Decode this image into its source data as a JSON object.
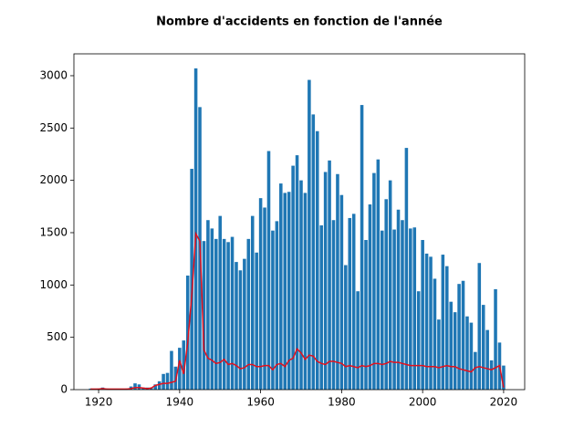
{
  "chart_data": {
    "type": "bar_line",
    "title": "Nombre d'accidents en fonction de l'année",
    "x": [
      1918,
      1919,
      1920,
      1921,
      1922,
      1923,
      1924,
      1925,
      1926,
      1927,
      1928,
      1929,
      1930,
      1931,
      1932,
      1933,
      1934,
      1935,
      1936,
      1937,
      1938,
      1939,
      1940,
      1941,
      1942,
      1943,
      1944,
      1945,
      1946,
      1947,
      1948,
      1949,
      1950,
      1951,
      1952,
      1953,
      1954,
      1955,
      1956,
      1957,
      1958,
      1959,
      1960,
      1961,
      1962,
      1963,
      1964,
      1965,
      1966,
      1967,
      1968,
      1969,
      1970,
      1971,
      1972,
      1973,
      1974,
      1975,
      1976,
      1977,
      1978,
      1979,
      1980,
      1981,
      1982,
      1983,
      1984,
      1985,
      1986,
      1987,
      1988,
      1989,
      1990,
      1991,
      1992,
      1993,
      1994,
      1995,
      1996,
      1997,
      1998,
      1999,
      2000,
      2001,
      2002,
      2003,
      2004,
      2005,
      2006,
      2007,
      2008,
      2009,
      2010,
      2011,
      2012,
      2013,
      2014,
      2015,
      2016,
      2017,
      2018,
      2019,
      2020
    ],
    "series": [
      {
        "color": "#1f77b4",
        "values": [
          10,
          5,
          10,
          20,
          10,
          5,
          5,
          5,
          5,
          10,
          30,
          60,
          50,
          20,
          20,
          20,
          50,
          80,
          150,
          160,
          370,
          220,
          400,
          470,
          1090,
          2110,
          3070,
          2700,
          1420,
          1620,
          1540,
          1440,
          1660,
          1440,
          1410,
          1460,
          1220,
          1140,
          1250,
          1440,
          1660,
          1310,
          1830,
          1740,
          2280,
          1520,
          1610,
          1970,
          1880,
          1890,
          2140,
          2240,
          2000,
          1880,
          2960,
          2630,
          2470,
          1570,
          2080,
          2190,
          1620,
          2060,
          1860,
          1190,
          1640,
          1680,
          940,
          2720,
          1430,
          1770,
          2070,
          2200,
          1520,
          1820,
          2000,
          1530,
          1720,
          1620,
          2310,
          1540,
          1550,
          940,
          1430,
          1300,
          1270,
          1060,
          670,
          1290,
          1180,
          840,
          740,
          1010,
          1040,
          700,
          640,
          360,
          1210,
          810,
          570,
          280,
          960,
          450,
          230
        ]
      },
      {
        "color": "#e3101c",
        "values": [
          5,
          5,
          5,
          10,
          5,
          5,
          5,
          5,
          5,
          5,
          10,
          20,
          20,
          15,
          10,
          15,
          40,
          50,
          60,
          60,
          70,
          80,
          280,
          150,
          450,
          900,
          1490,
          1420,
          380,
          300,
          280,
          250,
          260,
          290,
          240,
          250,
          230,
          200,
          210,
          240,
          240,
          220,
          220,
          230,
          230,
          190,
          240,
          250,
          220,
          280,
          300,
          390,
          350,
          290,
          330,
          320,
          270,
          250,
          240,
          270,
          270,
          260,
          250,
          220,
          230,
          220,
          210,
          230,
          220,
          230,
          250,
          250,
          240,
          250,
          270,
          260,
          260,
          250,
          240,
          230,
          230,
          230,
          230,
          220,
          220,
          220,
          210,
          220,
          230,
          220,
          220,
          200,
          190,
          180,
          170,
          210,
          220,
          210,
          200,
          190,
          210,
          230,
          20
        ]
      }
    ],
    "xlim": [
      1913.9,
      2025.2
    ],
    "xticks": [
      1920,
      1940,
      1960,
      1980,
      2000,
      2020
    ],
    "ylim": [
      0,
      3209
    ],
    "yticks": [
      0,
      500,
      1000,
      1500,
      2000,
      2500,
      3000
    ]
  }
}
